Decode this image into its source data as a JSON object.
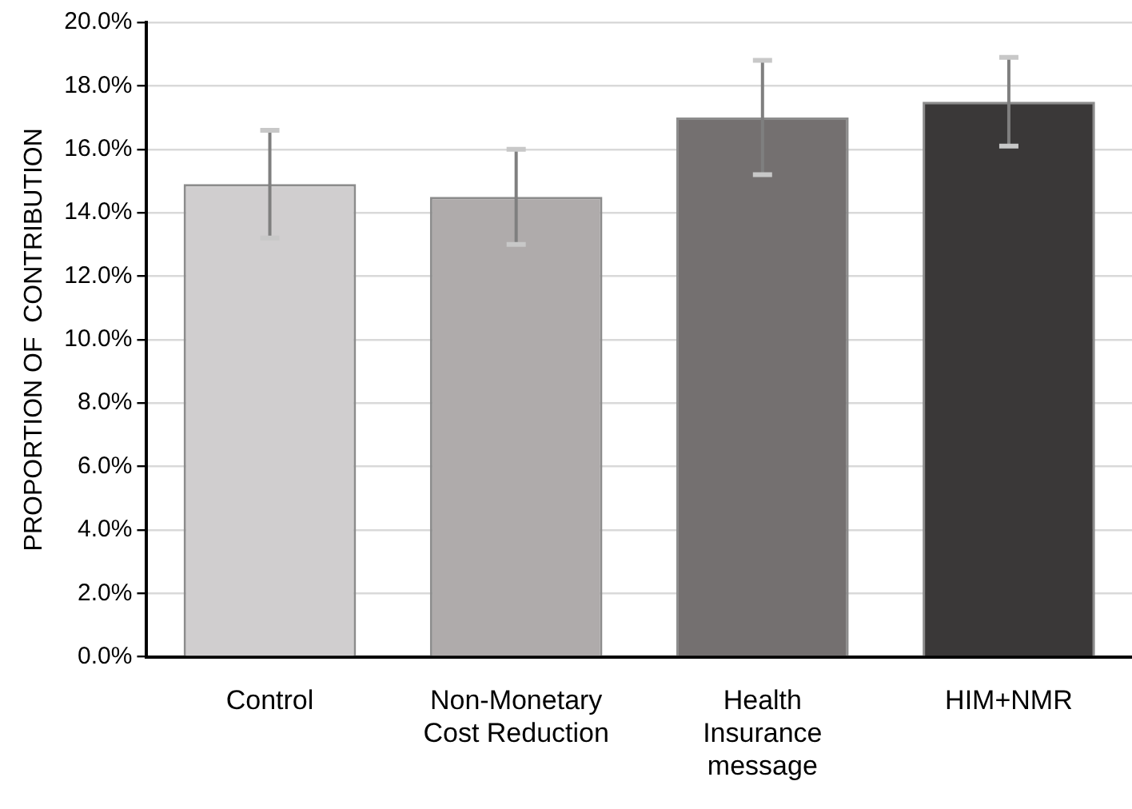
{
  "chart_data": {
    "type": "bar",
    "ylabel": "PROPORTION OF  CONTRIBUTION",
    "categories": [
      "Control",
      "Non-Monetary Cost Reduction",
      "Health Insurance message",
      "HIM+NMR"
    ],
    "values": [
      14.9,
      14.5,
      17.0,
      17.5
    ],
    "colors": [
      "#d0cecf",
      "#afabab",
      "#747070",
      "#3a3838"
    ],
    "errors": [
      [
        13.2,
        16.6
      ],
      [
        13.0,
        16.0
      ],
      [
        15.2,
        18.8
      ],
      [
        16.1,
        18.9
      ]
    ],
    "ylim": [
      0,
      20
    ],
    "yticks": [
      {
        "value": 0,
        "label": "0.0%"
      },
      {
        "value": 2,
        "label": "2.0%"
      },
      {
        "value": 4,
        "label": "4.0%"
      },
      {
        "value": 6,
        "label": "6.0%"
      },
      {
        "value": 8,
        "label": "8.0%"
      },
      {
        "value": 10,
        "label": "10.0%"
      },
      {
        "value": 12,
        "label": "12.0%"
      },
      {
        "value": 14,
        "label": "14.0%"
      },
      {
        "value": 16,
        "label": "16.0%"
      },
      {
        "value": 18,
        "label": "18.0%"
      },
      {
        "value": 20,
        "label": "20.0%"
      }
    ],
    "grid": "y",
    "legend": false
  }
}
